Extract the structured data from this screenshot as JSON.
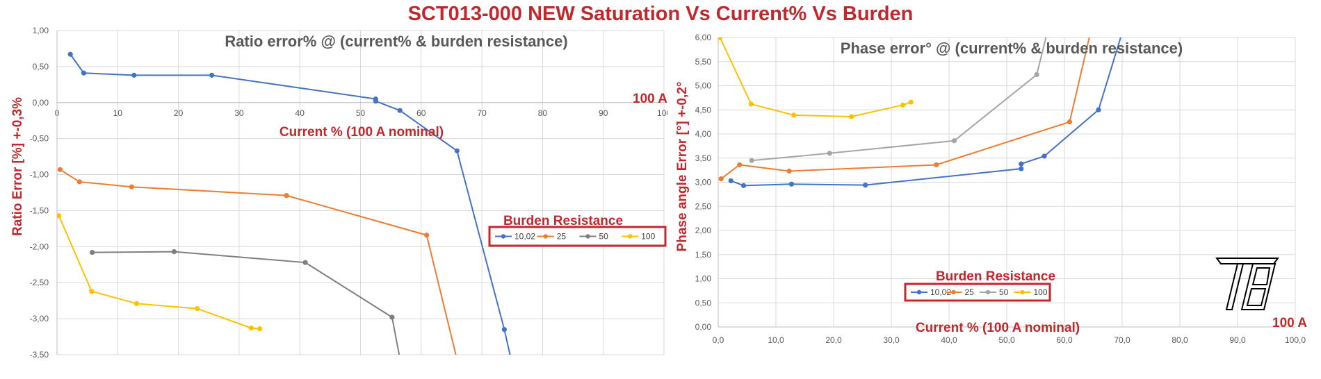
{
  "page_title": "SCT013-000  NEW Saturation Vs Current% Vs Burden",
  "chart_data": [
    {
      "type": "line",
      "title": "Ratio error% @ (current% & burden resistance)",
      "xlabel": "Current % (100 A nominal)",
      "ylabel": "Ratio Error [%]  +-0,3%",
      "annotation": "100 A",
      "xlim": [
        0,
        100
      ],
      "ylim": [
        -3.5,
        1.0
      ],
      "x_ticks": [
        "0",
        "10",
        "20",
        "30",
        "40",
        "50",
        "60",
        "70",
        "80",
        "90",
        "100"
      ],
      "y_ticks": [
        "1,00",
        "0,50",
        "0,00",
        "-0,50",
        "-1,00",
        "-1,50",
        "-2,00",
        "-2,50",
        "-3,00",
        "-3,50"
      ],
      "grid": true,
      "legend_title": "Burden Resistance",
      "legend_position": "right",
      "series": [
        {
          "name": "10,02",
          "color": "#4472c4",
          "points": [
            [
              2.2,
              0.67
            ],
            [
              4.4,
              0.41
            ],
            [
              12.7,
              0.38
            ],
            [
              25.5,
              0.38
            ],
            [
              52.5,
              0.05
            ],
            [
              52.5,
              0.02
            ],
            [
              56.5,
              -0.11
            ],
            [
              65.9,
              -0.67
            ],
            [
              73.7,
              -3.15
            ],
            [
              74.9,
              -3.6
            ]
          ]
        },
        {
          "name": "25",
          "color": "#ed7d31",
          "points": [
            [
              0.5,
              -0.93
            ],
            [
              3.7,
              -1.1
            ],
            [
              12.3,
              -1.17
            ],
            [
              37.8,
              -1.29
            ],
            [
              60.9,
              -1.84
            ],
            [
              66.0,
              -3.6
            ]
          ]
        },
        {
          "name": "50",
          "color": "#7f7f7f",
          "points": [
            [
              5.8,
              -2.08
            ],
            [
              19.3,
              -2.07
            ],
            [
              40.9,
              -2.22
            ],
            [
              55.2,
              -2.98
            ],
            [
              56.6,
              -3.6
            ]
          ]
        },
        {
          "name": "100",
          "color": "#ffc000",
          "points": [
            [
              0.3,
              -1.57
            ],
            [
              5.7,
              -2.62
            ],
            [
              13.1,
              -2.79
            ],
            [
              23.1,
              -2.86
            ],
            [
              32.0,
              -3.13
            ],
            [
              33.4,
              -3.14
            ]
          ]
        }
      ]
    },
    {
      "type": "line",
      "title": "Phase error° @ (current% & burden resistance)",
      "xlabel": "Current % (100 A nominal)",
      "ylabel": "Phase angle Error [°]  +-0,2°",
      "annotation": "100 A",
      "xlim": [
        0,
        100
      ],
      "ylim": [
        0,
        6
      ],
      "x_ticks": [
        "0,0",
        "10,0",
        "20,0",
        "30,0",
        "40,0",
        "50,0",
        "60,0",
        "70,0",
        "80,0",
        "90,0",
        "100,0"
      ],
      "y_ticks": [
        "6,00",
        "5,50",
        "5,00",
        "4,50",
        "4,00",
        "3,50",
        "3,00",
        "2,50",
        "2,00",
        "1,50",
        "1,00",
        "0,50",
        "0,00"
      ],
      "grid": true,
      "legend_title": "Burden Resistance",
      "legend_position": "bottom-center",
      "series": [
        {
          "name": "10,02",
          "color": "#4472c4",
          "points": [
            [
              2.2,
              3.03
            ],
            [
              4.4,
              2.93
            ],
            [
              12.7,
              2.96
            ],
            [
              25.5,
              2.94
            ],
            [
              52.5,
              3.28
            ],
            [
              52.5,
              3.38
            ],
            [
              56.5,
              3.54
            ],
            [
              65.9,
              4.5
            ],
            [
              70.0,
              6.1
            ]
          ]
        },
        {
          "name": "25",
          "color": "#ed7d31",
          "points": [
            [
              0.5,
              3.07
            ],
            [
              3.7,
              3.36
            ],
            [
              12.3,
              3.23
            ],
            [
              37.8,
              3.36
            ],
            [
              60.9,
              4.25
            ],
            [
              64.5,
              6.1
            ]
          ]
        },
        {
          "name": "50",
          "color": "#a5a5a5",
          "points": [
            [
              5.8,
              3.45
            ],
            [
              19.3,
              3.6
            ],
            [
              40.9,
              3.86
            ],
            [
              55.2,
              5.23
            ],
            [
              57.0,
              6.1
            ]
          ]
        },
        {
          "name": "100",
          "color": "#ffc000",
          "points": [
            [
              0.3,
              6.0
            ],
            [
              5.7,
              4.62
            ],
            [
              13.1,
              4.39
            ],
            [
              23.1,
              4.36
            ],
            [
              32.0,
              4.6
            ],
            [
              33.4,
              4.66
            ]
          ]
        }
      ]
    }
  ]
}
